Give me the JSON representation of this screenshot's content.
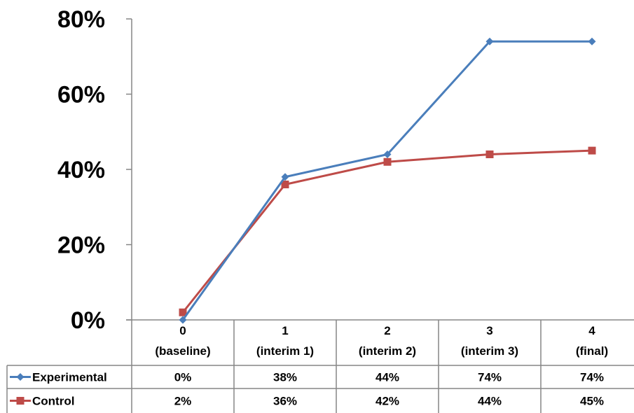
{
  "chart_data": {
    "type": "line",
    "title": "",
    "xlabel": "",
    "ylabel": "",
    "ylim": [
      0,
      0.8
    ],
    "y_tick_labels": [
      "0%",
      "20%",
      "40%",
      "60%",
      "80%"
    ],
    "y_ticks": [
      0,
      0.2,
      0.4,
      0.6,
      0.8
    ],
    "grid": false,
    "legend": "in data table",
    "categories": [
      {
        "line1": "0",
        "line2": "(baseline)"
      },
      {
        "line1": "1",
        "line2": "(interim 1)"
      },
      {
        "line1": "2",
        "line2": "(interim 2)"
      },
      {
        "line1": "3",
        "line2": "(interim 3)"
      },
      {
        "line1": "4",
        "line2": "(final)"
      }
    ],
    "series": [
      {
        "name": "Experimental",
        "color": "#4A7EBB",
        "marker": "diamond",
        "values": [
          0.0,
          0.38,
          0.44,
          0.74,
          0.74
        ],
        "labels": [
          "0%",
          "38%",
          "44%",
          "74%",
          "74%"
        ]
      },
      {
        "name": "Control",
        "color": "#BE4B48",
        "marker": "square",
        "values": [
          0.02,
          0.36,
          0.42,
          0.44,
          0.45
        ],
        "labels": [
          "2%",
          "36%",
          "42%",
          "44%",
          "45%"
        ]
      }
    ]
  }
}
